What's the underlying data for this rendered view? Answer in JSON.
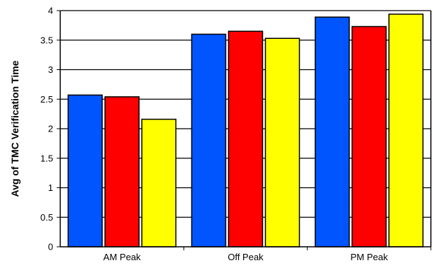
{
  "chart_data": {
    "type": "bar",
    "title": "",
    "xlabel": "",
    "ylabel": "Avg of TMC Verification Time",
    "categories": [
      "AM Peak",
      "Off Peak",
      "PM Peak"
    ],
    "series": [
      {
        "color": "#0055ff",
        "values": [
          2.57,
          3.6,
          3.89
        ]
      },
      {
        "color": "#ff0000",
        "values": [
          2.54,
          3.65,
          3.73
        ]
      },
      {
        "color": "#ffff00",
        "values": [
          2.16,
          3.53,
          3.94
        ]
      }
    ],
    "ylim": [
      0,
      4
    ],
    "yticks": [
      0,
      0.5,
      1,
      1.5,
      2,
      2.5,
      3,
      3.5,
      4
    ],
    "ytick_labels": [
      "0",
      "0.5",
      "1",
      "1.5",
      "2",
      "2.5",
      "3",
      "3.5",
      "4"
    ],
    "grid": true,
    "legend": "none"
  }
}
